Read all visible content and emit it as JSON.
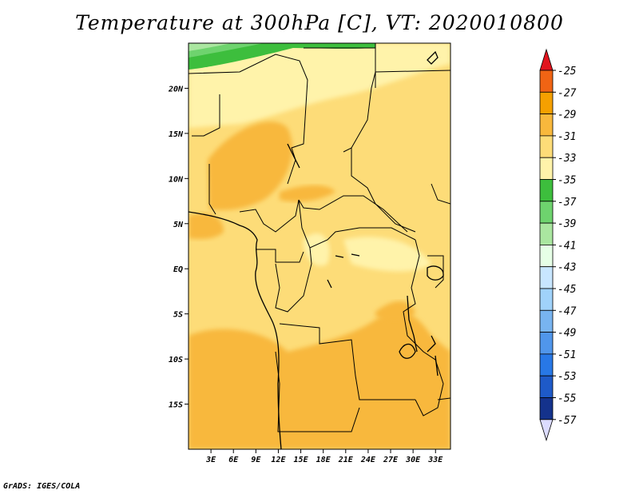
{
  "title": "Temperature at 300hPa [C], VT: 2020010800",
  "footer": "GrADS: IGES/COLA",
  "map": {
    "lon_range": [
      0,
      35
    ],
    "lat_range": [
      -20,
      25
    ],
    "lat_ticks": [
      {
        "value": 20,
        "label": "20N"
      },
      {
        "value": 15,
        "label": "15N"
      },
      {
        "value": 10,
        "label": "10N"
      },
      {
        "value": 5,
        "label": "5N"
      },
      {
        "value": 0,
        "label": "EQ"
      },
      {
        "value": -5,
        "label": "5S"
      },
      {
        "value": -10,
        "label": "10S"
      },
      {
        "value": -15,
        "label": "15S"
      }
    ],
    "lon_ticks": [
      {
        "value": 3,
        "label": "3E"
      },
      {
        "value": 6,
        "label": "6E"
      },
      {
        "value": 9,
        "label": "9E"
      },
      {
        "value": 12,
        "label": "12E"
      },
      {
        "value": 15,
        "label": "15E"
      },
      {
        "value": 18,
        "label": "18E"
      },
      {
        "value": 21,
        "label": "21E"
      },
      {
        "value": 24,
        "label": "24E"
      },
      {
        "value": 27,
        "label": "27E"
      },
      {
        "value": 30,
        "label": "30E"
      },
      {
        "value": 33,
        "label": "33E"
      }
    ]
  },
  "colorbar": {
    "levels": [
      {
        "label": "-25",
        "color": "#f06414"
      },
      {
        "label": "-27",
        "color": "#f5a000"
      },
      {
        "label": "-29",
        "color": "#f8b83c"
      },
      {
        "label": "-31",
        "color": "#fddc78"
      },
      {
        "label": "-33",
        "color": "#fff3aa"
      },
      {
        "label": "-35",
        "color": "#3dbe3d"
      },
      {
        "label": "-37",
        "color": "#6ed36e"
      },
      {
        "label": "-39",
        "color": "#aae6a0"
      },
      {
        "label": "-41",
        "color": "#e6ffe6"
      },
      {
        "label": "-43",
        "color": "#c8e6ff"
      },
      {
        "label": "-45",
        "color": "#a0d2fa"
      },
      {
        "label": "-47",
        "color": "#78b4f0"
      },
      {
        "label": "-49",
        "color": "#5096eb"
      },
      {
        "label": "-51",
        "color": "#2878e6"
      },
      {
        "label": "-53",
        "color": "#1e5ac8"
      },
      {
        "label": "-55",
        "color": "#14328c"
      },
      {
        "label": "-57",
        "color": "#0a145a"
      }
    ],
    "top_arrow_color": "#e1141e",
    "bottom_arrow_color": "#dcdcff"
  }
}
